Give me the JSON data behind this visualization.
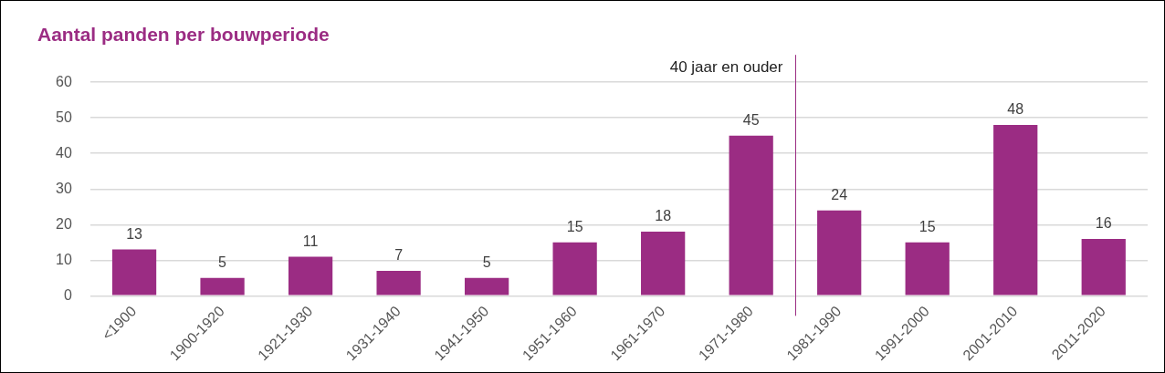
{
  "chart_data": {
    "type": "bar",
    "title": "Aantal panden per bouwperiode",
    "categories": [
      "<1900",
      "1900-1920",
      "1921-1930",
      "1931-1940",
      "1941-1950",
      "1951-1960",
      "1961-1970",
      "1971-1980",
      "1981-1990",
      "1991-2000",
      "2001-2010",
      "2011-2020"
    ],
    "values": [
      13,
      5,
      11,
      7,
      5,
      15,
      18,
      45,
      24,
      15,
      48,
      16
    ],
    "color": "#9b2c83",
    "ylim": [
      0,
      60
    ],
    "yticks": [
      0,
      10,
      20,
      30,
      40,
      50,
      60
    ],
    "grid": "y",
    "legend": false,
    "data_labels": true,
    "ref_lines": [
      {
        "axis": "x",
        "value": "1981-1990",
        "label": "40 jaar en ouder",
        "color": "#9b2c83"
      }
    ]
  }
}
